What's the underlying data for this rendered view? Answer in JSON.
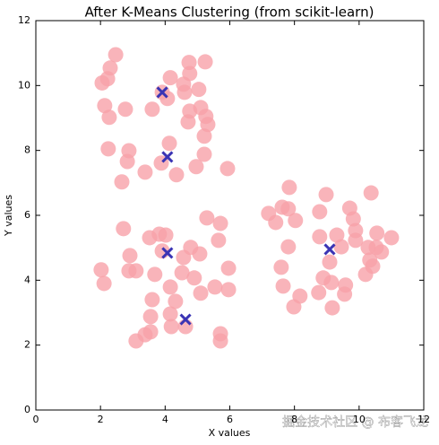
{
  "chart_data": {
    "type": "scatter",
    "title": "After K-Means Clustering (from scikit-learn)",
    "x_label": "X values",
    "y_label": "Y values",
    "xlim": [
      0,
      12
    ],
    "ylim": [
      0,
      12
    ],
    "xticks": [
      0,
      2,
      4,
      6,
      8,
      10,
      12
    ],
    "yticks": [
      0,
      2,
      4,
      6,
      8,
      10,
      12
    ],
    "grid": false,
    "watermark": "掘金技术社区 @ 布客飞龙",
    "series": [
      {
        "color": "#f7a1a9",
        "marker": "circle",
        "x": [
          2.47,
          2.3,
          2.05,
          2.22,
          4.74,
          5.24,
          4.76,
          4.16,
          4.57,
          5.04,
          4.6,
          4.07,
          3.91,
          2.13,
          2.27,
          2.77,
          3.6,
          4.76,
          5.1,
          5.26,
          5.32,
          4.71,
          5.21,
          4.13,
          2.24,
          2.88,
          2.83,
          5.21,
          3.88,
          4.96,
          5.93,
          3.38,
          4.35,
          2.66,
          2.71,
          3.52,
          3.82,
          4.02,
          5.29,
          5.71,
          5.65,
          3.91,
          4.79,
          5.07,
          2.91,
          4.57,
          2.02,
          2.88,
          3.1,
          4.52,
          5.96,
          2.11,
          3.68,
          4.9,
          4.16,
          5.54,
          5.96,
          5.1,
          3.6,
          4.32,
          4.16,
          3.55,
          4.19,
          4.63,
          3.55,
          3.38,
          3.1,
          5.71,
          5.71,
          7.84,
          7.2,
          7.62,
          7.81,
          7.42,
          8.03,
          8.98,
          8.78,
          9.71,
          10.37,
          9.82,
          8.78,
          9.31,
          9.89,
          10.55,
          11.0,
          7.81,
          9.45,
          9.89,
          10.28,
          10.53,
          10.69,
          10.33,
          9.09,
          10.42,
          7.59,
          8.89,
          9.14,
          9.58,
          10.2,
          7.65,
          8.75,
          9.55,
          8.17,
          7.98,
          9.17
        ],
        "values": [
          10.95,
          10.54,
          10.08,
          10.21,
          10.71,
          10.73,
          10.37,
          10.24,
          10.04,
          9.88,
          9.79,
          9.6,
          9.79,
          9.38,
          9.02,
          9.27,
          9.27,
          9.21,
          9.32,
          9.05,
          8.8,
          8.88,
          8.44,
          8.22,
          8.05,
          7.99,
          7.66,
          7.88,
          7.61,
          7.5,
          7.44,
          7.33,
          7.25,
          7.03,
          5.59,
          5.31,
          5.42,
          5.39,
          5.92,
          5.75,
          5.23,
          4.9,
          5.01,
          4.81,
          4.76,
          4.7,
          4.32,
          4.29,
          4.29,
          4.23,
          4.37,
          3.9,
          4.18,
          4.07,
          3.79,
          3.79,
          3.71,
          3.6,
          3.4,
          3.35,
          2.96,
          2.88,
          2.57,
          2.57,
          2.41,
          2.32,
          2.13,
          2.35,
          2.13,
          6.86,
          6.06,
          6.25,
          6.2,
          5.78,
          5.84,
          6.64,
          6.11,
          6.22,
          6.69,
          5.89,
          5.34,
          5.39,
          5.53,
          5.45,
          5.31,
          5.03,
          5.03,
          5.23,
          5.01,
          5.01,
          4.87,
          4.62,
          4.56,
          4.43,
          4.4,
          4.07,
          3.93,
          3.85,
          4.18,
          3.82,
          3.62,
          3.57,
          3.51,
          3.18,
          3.15
        ]
      },
      {
        "color": "#3a34b4",
        "marker": "x",
        "x": [
          3.91,
          4.07,
          4.07,
          4.63,
          9.09
        ],
        "values": [
          9.79,
          7.8,
          4.84,
          2.79,
          4.95
        ]
      }
    ]
  }
}
